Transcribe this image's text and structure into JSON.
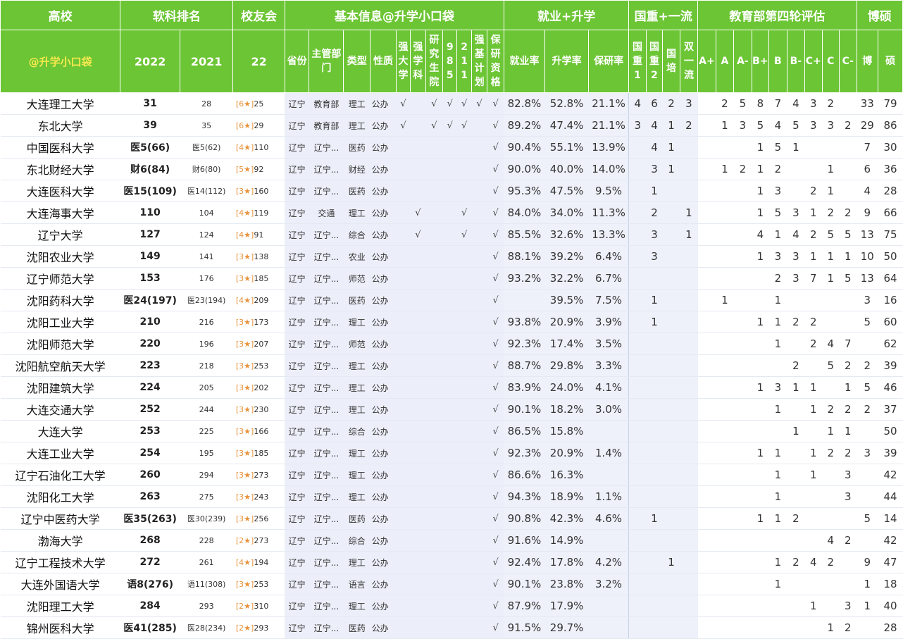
{
  "header": {
    "row1": [
      "高校",
      "软科排名",
      "校友会",
      "基本信息@升学小口袋",
      "就业+升学",
      "国重+一流",
      "教育部第四轮评估",
      "博硕"
    ],
    "brand": "@升学小口袋",
    "years": [
      "2022",
      "2021",
      "22"
    ],
    "basic": [
      "省份",
      "主管部门",
      "类型",
      "性质",
      "强大学",
      "强学科",
      "研究生院",
      "985",
      "211",
      "强基计划",
      "保研资格"
    ],
    "employ": [
      "就业率",
      "升学率",
      "保研率"
    ],
    "guozhong": [
      "国重1",
      "国重2",
      "国培",
      "双一流"
    ],
    "eval": [
      "A+",
      "A",
      "A-",
      "B+",
      "B",
      "B-",
      "C+",
      "C",
      "C-"
    ],
    "boshuo": [
      "博",
      "硕"
    ]
  },
  "rows": [
    {
      "name": "大连理工大学",
      "r22": "31",
      "r21": "28",
      "alum_b": "[6★]",
      "alum": "25",
      "prov": "辽宁",
      "dept": "教育部",
      "type": "理工",
      "nature": "公办",
      "t": [
        "√",
        "",
        "√",
        "√",
        "√",
        "√",
        "√"
      ],
      "emp": "82.8%",
      "up": "52.8%",
      "bao": "21.1%",
      "g": [
        "4",
        "6",
        "2",
        "3"
      ],
      "e": [
        "",
        "2",
        "5",
        "8",
        "7",
        "4",
        "3",
        "2",
        ""
      ],
      "bo": "33",
      "sh": "79"
    },
    {
      "name": "东北大学",
      "r22": "39",
      "r21": "35",
      "alum_b": "[6★]",
      "alum": "29",
      "prov": "辽宁",
      "dept": "教育部",
      "type": "理工",
      "nature": "公办",
      "t": [
        "√",
        "",
        "√",
        "√",
        "√",
        "",
        "√"
      ],
      "emp": "89.2%",
      "up": "47.4%",
      "bao": "21.1%",
      "g": [
        "3",
        "4",
        "1",
        "2"
      ],
      "e": [
        "",
        "1",
        "3",
        "5",
        "4",
        "5",
        "3",
        "3",
        "2"
      ],
      "bo": "29",
      "sh": "86"
    },
    {
      "name": "中国医科大学",
      "r22": "医5(66)",
      "r21": "医5(62)",
      "alum_b": "[4★]",
      "alum": "110",
      "prov": "辽宁",
      "dept": "辽宁...",
      "type": "医药",
      "nature": "公办",
      "t": [
        "",
        "",
        "",
        "",
        "",
        "",
        "√"
      ],
      "emp": "90.4%",
      "up": "55.1%",
      "bao": "13.9%",
      "g": [
        "",
        "4",
        "1",
        ""
      ],
      "e": [
        "",
        "",
        "",
        "1",
        "5",
        "1",
        "",
        "",
        ""
      ],
      "bo": "7",
      "sh": "30"
    },
    {
      "name": "东北财经大学",
      "r22": "财6(84)",
      "r21": "财6(80)",
      "alum_b": "[5★]",
      "alum": "92",
      "prov": "辽宁",
      "dept": "辽宁...",
      "type": "财经",
      "nature": "公办",
      "t": [
        "",
        "",
        "",
        "",
        "",
        "",
        "√"
      ],
      "emp": "90.0%",
      "up": "40.0%",
      "bao": "14.0%",
      "g": [
        "",
        "3",
        "1",
        ""
      ],
      "e": [
        "",
        "1",
        "2",
        "1",
        "2",
        "",
        "",
        "1",
        ""
      ],
      "bo": "6",
      "sh": "36"
    },
    {
      "name": "大连医科大学",
      "r22": "医15(109)",
      "r21": "医14(112)",
      "alum_b": "[3★]",
      "alum": "160",
      "prov": "辽宁",
      "dept": "辽宁...",
      "type": "医药",
      "nature": "公办",
      "t": [
        "",
        "",
        "",
        "",
        "",
        "",
        "√"
      ],
      "emp": "95.3%",
      "up": "47.5%",
      "bao": "9.5%",
      "g": [
        "",
        "1",
        "",
        ""
      ],
      "e": [
        "",
        "",
        "",
        "1",
        "3",
        "",
        "2",
        "1",
        ""
      ],
      "bo": "4",
      "sh": "28"
    },
    {
      "name": "大连海事大学",
      "r22": "110",
      "r21": "104",
      "alum_b": "[4★]",
      "alum": "119",
      "prov": "辽宁",
      "dept": "交通",
      "type": "理工",
      "nature": "公办",
      "t": [
        "",
        "√",
        "",
        "",
        "√",
        "",
        "√"
      ],
      "emp": "84.0%",
      "up": "34.0%",
      "bao": "11.3%",
      "g": [
        "",
        "2",
        "",
        "1"
      ],
      "e": [
        "",
        "",
        "",
        "1",
        "5",
        "3",
        "1",
        "2",
        "2"
      ],
      "bo": "9",
      "sh": "66"
    },
    {
      "name": "辽宁大学",
      "r22": "127",
      "r21": "124",
      "alum_b": "[4★]",
      "alum": "91",
      "prov": "辽宁",
      "dept": "辽宁...",
      "type": "综合",
      "nature": "公办",
      "t": [
        "",
        "√",
        "",
        "",
        "√",
        "",
        "√"
      ],
      "emp": "85.5%",
      "up": "32.6%",
      "bao": "13.3%",
      "g": [
        "",
        "3",
        "",
        "1"
      ],
      "e": [
        "",
        "",
        "",
        "4",
        "1",
        "4",
        "2",
        "5",
        "5"
      ],
      "bo": "13",
      "sh": "75"
    },
    {
      "name": "沈阳农业大学",
      "r22": "149",
      "r21": "141",
      "alum_b": "[3★]",
      "alum": "138",
      "prov": "辽宁",
      "dept": "辽宁...",
      "type": "农业",
      "nature": "公办",
      "t": [
        "",
        "",
        "",
        "",
        "",
        "",
        "√"
      ],
      "emp": "88.1%",
      "up": "39.2%",
      "bao": "6.4%",
      "g": [
        "",
        "3",
        "",
        ""
      ],
      "e": [
        "",
        "",
        "",
        "1",
        "3",
        "3",
        "1",
        "1",
        "1"
      ],
      "bo": "10",
      "sh": "50"
    },
    {
      "name": "辽宁师范大学",
      "r22": "153",
      "r21": "176",
      "alum_b": "[3★]",
      "alum": "185",
      "prov": "辽宁",
      "dept": "辽宁...",
      "type": "师范",
      "nature": "公办",
      "t": [
        "",
        "",
        "",
        "",
        "",
        "",
        "√"
      ],
      "emp": "93.2%",
      "up": "32.2%",
      "bao": "6.7%",
      "g": [
        "",
        "",
        "",
        ""
      ],
      "e": [
        "",
        "",
        "",
        "",
        "2",
        "3",
        "7",
        "1",
        "5"
      ],
      "bo": "13",
      "sh": "64"
    },
    {
      "name": "沈阳药科大学",
      "r22": "医24(197)",
      "r21": "医23(194)",
      "alum_b": "[4★]",
      "alum": "209",
      "prov": "辽宁",
      "dept": "辽宁...",
      "type": "医药",
      "nature": "公办",
      "t": [
        "",
        "",
        "",
        "",
        "",
        "",
        "√"
      ],
      "emp": "",
      "up": "39.5%",
      "bao": "7.5%",
      "g": [
        "",
        "1",
        "",
        ""
      ],
      "e": [
        "",
        "1",
        "",
        "",
        "1",
        "",
        "",
        "",
        ""
      ],
      "bo": "3",
      "sh": "16"
    },
    {
      "name": "沈阳工业大学",
      "r22": "210",
      "r21": "216",
      "alum_b": "[3★]",
      "alum": "173",
      "prov": "辽宁",
      "dept": "辽宁...",
      "type": "理工",
      "nature": "公办",
      "t": [
        "",
        "",
        "",
        "",
        "",
        "",
        "√"
      ],
      "emp": "93.8%",
      "up": "20.9%",
      "bao": "3.9%",
      "g": [
        "",
        "1",
        "",
        ""
      ],
      "e": [
        "",
        "",
        "",
        "1",
        "1",
        "2",
        "2",
        "",
        ""
      ],
      "bo": "5",
      "sh": "60"
    },
    {
      "name": "沈阳师范大学",
      "r22": "220",
      "r21": "196",
      "alum_b": "[3★]",
      "alum": "207",
      "prov": "辽宁",
      "dept": "辽宁...",
      "type": "师范",
      "nature": "公办",
      "t": [
        "",
        "",
        "",
        "",
        "",
        "",
        "√"
      ],
      "emp": "92.3%",
      "up": "17.4%",
      "bao": "3.5%",
      "g": [
        "",
        "",
        "",
        ""
      ],
      "e": [
        "",
        "",
        "",
        "",
        "1",
        "",
        "2",
        "4",
        "7"
      ],
      "bo": "",
      "sh": "62"
    },
    {
      "name": "沈阳航空航天大学",
      "r22": "223",
      "r21": "218",
      "alum_b": "[3★]",
      "alum": "253",
      "prov": "辽宁",
      "dept": "辽宁...",
      "type": "理工",
      "nature": "公办",
      "t": [
        "",
        "",
        "",
        "",
        "",
        "",
        "√"
      ],
      "emp": "88.7%",
      "up": "29.8%",
      "bao": "3.3%",
      "g": [
        "",
        "",
        "",
        ""
      ],
      "e": [
        "",
        "",
        "",
        "",
        "",
        "2",
        "",
        "5",
        "2"
      ],
      "bo": "2",
      "sh": "39"
    },
    {
      "name": "沈阳建筑大学",
      "r22": "224",
      "r21": "205",
      "alum_b": "[3★]",
      "alum": "202",
      "prov": "辽宁",
      "dept": "辽宁...",
      "type": "理工",
      "nature": "公办",
      "t": [
        "",
        "",
        "",
        "",
        "",
        "",
        "√"
      ],
      "emp": "83.9%",
      "up": "24.0%",
      "bao": "4.1%",
      "g": [
        "",
        "",
        "",
        ""
      ],
      "e": [
        "",
        "",
        "",
        "1",
        "3",
        "1",
        "1",
        "",
        "1"
      ],
      "bo": "5",
      "sh": "46"
    },
    {
      "name": "大连交通大学",
      "r22": "252",
      "r21": "244",
      "alum_b": "[3★]",
      "alum": "230",
      "prov": "辽宁",
      "dept": "辽宁...",
      "type": "理工",
      "nature": "公办",
      "t": [
        "",
        "",
        "",
        "",
        "",
        "",
        "√"
      ],
      "emp": "90.1%",
      "up": "18.2%",
      "bao": "3.0%",
      "g": [
        "",
        "",
        "",
        ""
      ],
      "e": [
        "",
        "",
        "",
        "",
        "1",
        "",
        "1",
        "2",
        "2"
      ],
      "bo": "2",
      "sh": "37"
    },
    {
      "name": "大连大学",
      "r22": "253",
      "r21": "225",
      "alum_b": "[3★]",
      "alum": "166",
      "prov": "辽宁",
      "dept": "辽宁...",
      "type": "综合",
      "nature": "公办",
      "t": [
        "",
        "",
        "",
        "",
        "",
        "",
        "√"
      ],
      "emp": "86.5%",
      "up": "15.8%",
      "bao": "",
      "g": [
        "",
        "",
        "",
        ""
      ],
      "e": [
        "",
        "",
        "",
        "",
        "",
        "1",
        "",
        "1",
        "1"
      ],
      "bo": "",
      "sh": "50"
    },
    {
      "name": "大连工业大学",
      "r22": "254",
      "r21": "195",
      "alum_b": "[3★]",
      "alum": "185",
      "prov": "辽宁",
      "dept": "辽宁...",
      "type": "理工",
      "nature": "公办",
      "t": [
        "",
        "",
        "",
        "",
        "",
        "",
        "√"
      ],
      "emp": "92.3%",
      "up": "20.9%",
      "bao": "1.4%",
      "g": [
        "",
        "",
        "",
        ""
      ],
      "e": [
        "",
        "",
        "",
        "1",
        "1",
        "",
        "1",
        "2",
        "2"
      ],
      "bo": "3",
      "sh": "39"
    },
    {
      "name": "辽宁石油化工大学",
      "r22": "260",
      "r21": "294",
      "alum_b": "[3★]",
      "alum": "273",
      "prov": "辽宁",
      "dept": "辽宁...",
      "type": "理工",
      "nature": "公办",
      "t": [
        "",
        "",
        "",
        "",
        "",
        "",
        "√"
      ],
      "emp": "86.6%",
      "up": "16.3%",
      "bao": "",
      "g": [
        "",
        "",
        "",
        ""
      ],
      "e": [
        "",
        "",
        "",
        "",
        "1",
        "",
        "1",
        "",
        "3"
      ],
      "bo": "",
      "sh": "42"
    },
    {
      "name": "沈阳化工大学",
      "r22": "263",
      "r21": "275",
      "alum_b": "[3★]",
      "alum": "243",
      "prov": "辽宁",
      "dept": "辽宁...",
      "type": "理工",
      "nature": "公办",
      "t": [
        "",
        "",
        "",
        "",
        "",
        "",
        "√"
      ],
      "emp": "94.3%",
      "up": "18.9%",
      "bao": "1.1%",
      "g": [
        "",
        "",
        "",
        ""
      ],
      "e": [
        "",
        "",
        "",
        "",
        "1",
        "",
        "",
        "",
        "3"
      ],
      "bo": "",
      "sh": "44"
    },
    {
      "name": "辽宁中医药大学",
      "r22": "医35(263)",
      "r21": "医30(239)",
      "alum_b": "[3★]",
      "alum": "256",
      "prov": "辽宁",
      "dept": "辽宁...",
      "type": "医药",
      "nature": "公办",
      "t": [
        "",
        "",
        "",
        "",
        "",
        "",
        "√"
      ],
      "emp": "90.8%",
      "up": "42.3%",
      "bao": "4.6%",
      "g": [
        "",
        "1",
        "",
        ""
      ],
      "e": [
        "",
        "",
        "",
        "1",
        "1",
        "2",
        "",
        "",
        ""
      ],
      "bo": "5",
      "sh": "14"
    },
    {
      "name": "渤海大学",
      "r22": "268",
      "r21": "228",
      "alum_b": "[2★]",
      "alum": "273",
      "prov": "辽宁",
      "dept": "辽宁...",
      "type": "综合",
      "nature": "公办",
      "t": [
        "",
        "",
        "",
        "",
        "",
        "",
        "√"
      ],
      "emp": "91.6%",
      "up": "14.9%",
      "bao": "",
      "g": [
        "",
        "",
        "",
        ""
      ],
      "e": [
        "",
        "",
        "",
        "",
        "",
        "",
        "",
        "4",
        "2"
      ],
      "bo": "",
      "sh": "42"
    },
    {
      "name": "辽宁工程技术大学",
      "r22": "272",
      "r21": "261",
      "alum_b": "[4★]",
      "alum": "194",
      "prov": "辽宁",
      "dept": "辽宁...",
      "type": "理工",
      "nature": "公办",
      "t": [
        "",
        "",
        "",
        "",
        "",
        "",
        "√"
      ],
      "emp": "92.4%",
      "up": "17.8%",
      "bao": "4.2%",
      "g": [
        "",
        "",
        "1",
        ""
      ],
      "e": [
        "",
        "",
        "",
        "",
        "1",
        "2",
        "4",
        "2",
        ""
      ],
      "bo": "9",
      "sh": "47"
    },
    {
      "name": "大连外国语大学",
      "r22": "语8(276)",
      "r21": "语11(308)",
      "alum_b": "[3★]",
      "alum": "253",
      "prov": "辽宁",
      "dept": "辽宁...",
      "type": "语言",
      "nature": "公办",
      "t": [
        "",
        "",
        "",
        "",
        "",
        "",
        "√"
      ],
      "emp": "90.1%",
      "up": "23.8%",
      "bao": "3.2%",
      "g": [
        "",
        "",
        "",
        ""
      ],
      "e": [
        "",
        "",
        "",
        "",
        "1",
        "",
        "",
        "",
        ""
      ],
      "bo": "1",
      "sh": "18"
    },
    {
      "name": "沈阳理工大学",
      "r22": "284",
      "r21": "293",
      "alum_b": "[2★]",
      "alum": "310",
      "prov": "辽宁",
      "dept": "辽宁...",
      "type": "理工",
      "nature": "公办",
      "t": [
        "",
        "",
        "",
        "",
        "",
        "",
        "√"
      ],
      "emp": "87.9%",
      "up": "17.9%",
      "bao": "",
      "g": [
        "",
        "",
        "",
        ""
      ],
      "e": [
        "",
        "",
        "",
        "",
        "",
        "",
        "1",
        "",
        "3"
      ],
      "bo": "1",
      "sh": "40"
    },
    {
      "name": "锦州医科大学",
      "r22": "医41(285)",
      "r21": "医28(234)",
      "alum_b": "[2★]",
      "alum": "293",
      "prov": "辽宁",
      "dept": "辽宁...",
      "type": "医药",
      "nature": "公办",
      "t": [
        "",
        "",
        "",
        "",
        "",
        "",
        "√"
      ],
      "emp": "91.5%",
      "up": "29.7%",
      "bao": "",
      "g": [
        "",
        "",
        "",
        ""
      ],
      "e": [
        "",
        "",
        "",
        "",
        "",
        "",
        "",
        "1",
        "2"
      ],
      "bo": "",
      "sh": "28"
    }
  ]
}
